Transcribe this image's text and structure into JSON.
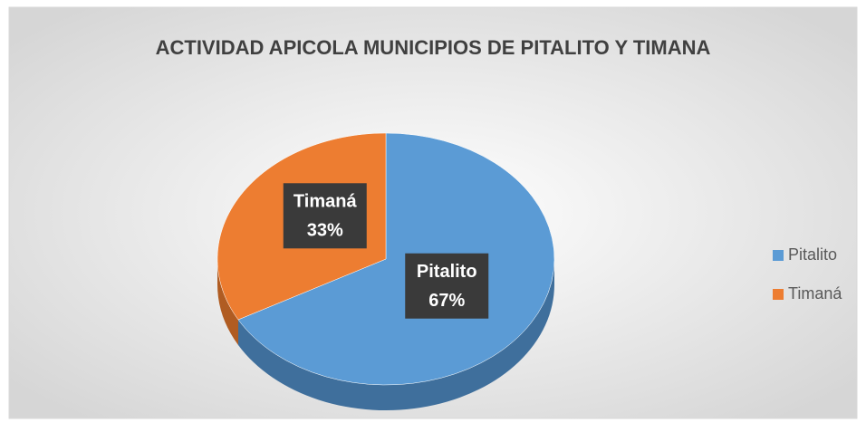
{
  "chart_data": {
    "type": "pie",
    "title": "ACTIVIDAD APICOLA MUNICIPIOS DE PITALITO Y TIMANA",
    "categories": [
      "Pitalito",
      "Timaná"
    ],
    "values": [
      67,
      33
    ],
    "value_labels": [
      "67%",
      "33%"
    ],
    "colors": [
      "#5b9bd5",
      "#ed7d31"
    ],
    "side_colors": [
      "#3f6f9c",
      "#b05c22"
    ],
    "legend": "right",
    "three_d": true
  }
}
